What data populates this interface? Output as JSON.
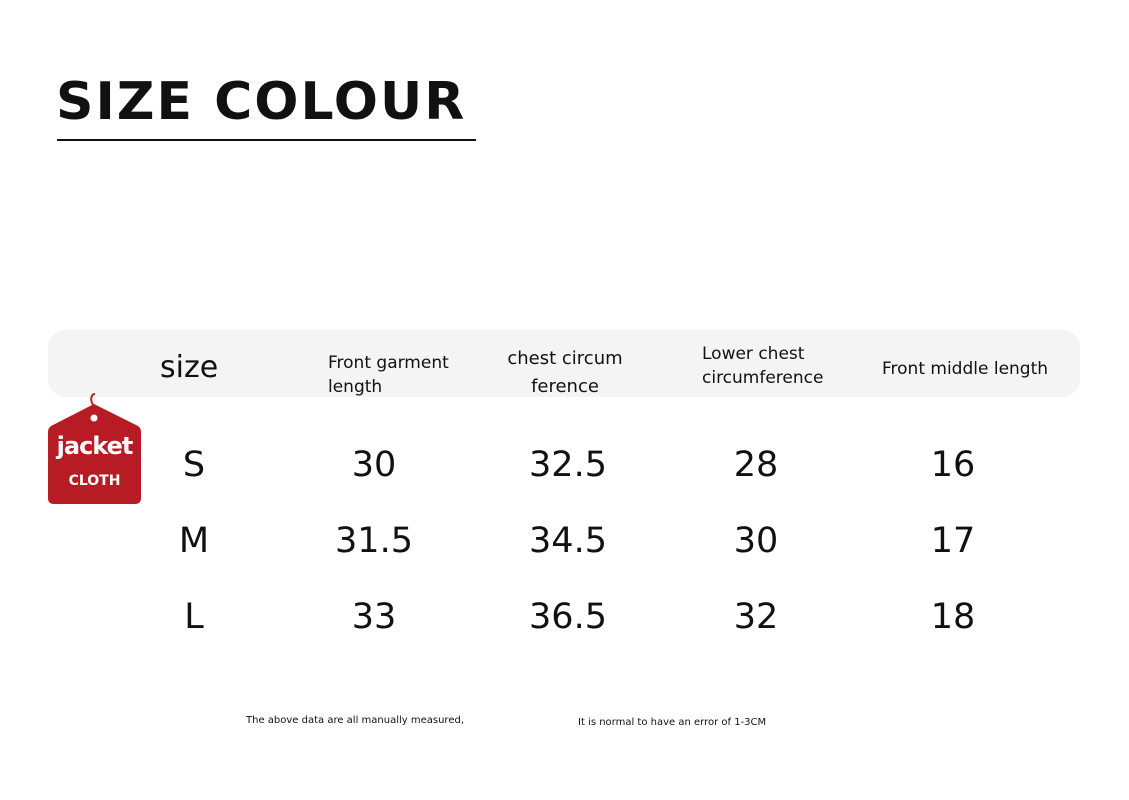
{
  "title": "SIZE COLOUR",
  "tag": {
    "line1": "jacket",
    "line2": "CLOTH",
    "color": "#b71c24"
  },
  "table": {
    "headers": [
      "size",
      "Front garment length",
      "chest circum ference",
      "Lower chest circumference",
      "Front middle length"
    ],
    "header_lines": {
      "c1": [
        "Front garment",
        "length"
      ],
      "c2": [
        "chest circum",
        "ference"
      ],
      "c3": [
        "Lower chest",
        "circumference"
      ],
      "c4": [
        "Front middle length"
      ]
    },
    "rows": [
      [
        "S",
        "30",
        "32.5",
        "28",
        "16"
      ],
      [
        "M",
        "31.5",
        "34.5",
        "30",
        "17"
      ],
      [
        "L",
        "33",
        "36.5",
        "32",
        "18"
      ]
    ]
  },
  "notes": [
    "The above data are all manually measured,",
    "It is normal to have an error of 1-3CM"
  ]
}
